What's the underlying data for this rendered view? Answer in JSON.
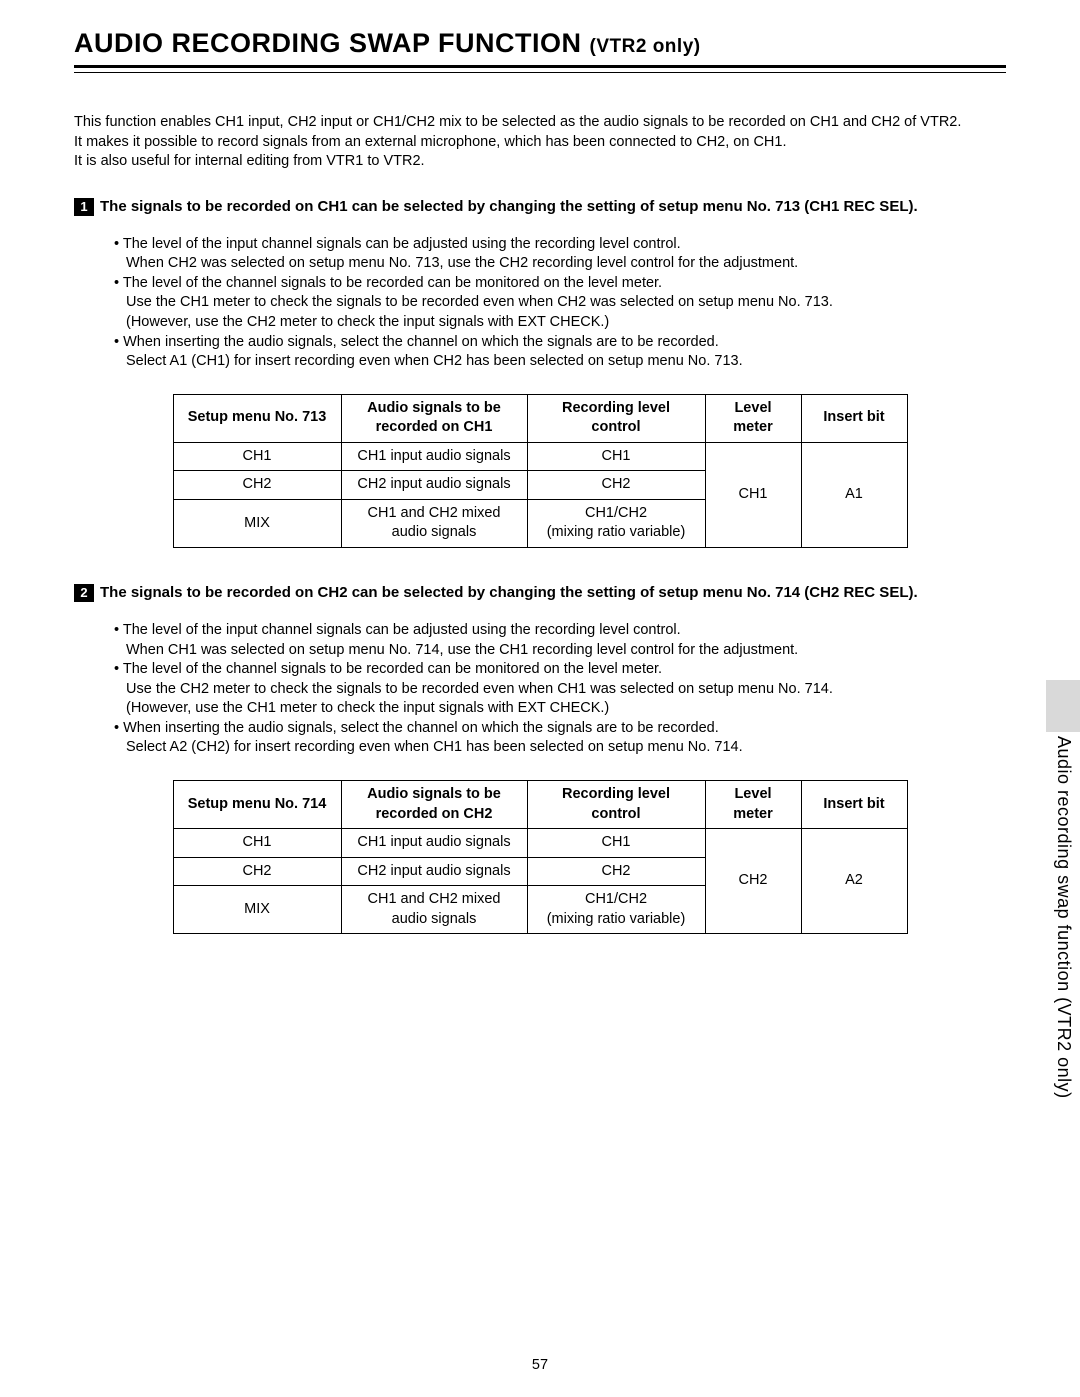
{
  "title": {
    "main": "AUDIO RECORDING SWAP FUNCTION",
    "sub": "(VTR2 only)"
  },
  "intro": {
    "p1": "This function enables CH1 input, CH2 input or CH1/CH2 mix to be selected as the audio signals to be recorded on CH1 and CH2 of VTR2.",
    "p2": "It makes it possible to record signals from an external microphone, which has been connected to CH2, on CH1.",
    "p3": "It is also useful for internal editing from VTR1 to VTR2."
  },
  "section1": {
    "num": "1",
    "heading": "The signals to be recorded on CH1 can be selected by changing the setting of setup menu No. 713 (CH1 REC SEL).",
    "b1": "• The level of the input channel signals can be adjusted using the recording level control.",
    "b1s": "When CH2 was selected on setup menu No. 713, use the CH2 recording level control for the adjustment.",
    "b2": "• The level of the channel signals to be recorded can be monitored on the level meter.",
    "b2s1": "Use the CH1 meter to check the signals to be recorded even when CH2 was selected on setup menu No. 713.",
    "b2s2": "(However, use the CH2 meter to check the input signals with EXT CHECK.)",
    "b3": "• When inserting the audio signals, select the channel on which the signals are to be recorded.",
    "b3s": "Select A1 (CH1) for insert recording even when CH2 has been selected on setup menu No. 713."
  },
  "section2": {
    "num": "2",
    "heading": "The signals to be recorded on CH2 can be selected by changing the setting of setup menu No. 714 (CH2 REC SEL).",
    "b1": "• The level of the input channel signals can be adjusted using the recording level control.",
    "b1s": "When CH1 was selected on setup menu No. 714, use the CH1 recording level control for the adjustment.",
    "b2": "• The level of the channel signals to be recorded can be monitored on the level meter.",
    "b2s1": "Use the CH2 meter to check the signals to be recorded even when CH1 was selected on setup menu No. 714.",
    "b2s2": "(However, use the CH1 meter to check the input signals with EXT CHECK.)",
    "b3": "• When inserting the audio signals, select the channel on which the signals are to be recorded.",
    "b3s": "Select A2 (CH2) for insert recording even when CH1 has been selected on setup menu No. 714."
  },
  "table1": {
    "h1": "Setup menu No. 713",
    "h2a": "Audio signals to be",
    "h2b": "recorded on CH1",
    "h3": "Recording level control",
    "h4": "Level meter",
    "h5": "Insert bit",
    "r1c1": "CH1",
    "r1c2": "CH1 input audio signals",
    "r1c3": "CH1",
    "r2c1": "CH2",
    "r2c2": "CH2 input audio signals",
    "r2c3": "CH2",
    "r3c1": "MIX",
    "r3c2a": "CH1 and CH2 mixed",
    "r3c2b": "audio signals",
    "r3c3a": "CH1/CH2",
    "r3c3b": "(mixing ratio variable)",
    "lm": "CH1",
    "ib": "A1"
  },
  "table2": {
    "h1": "Setup menu No. 714",
    "h2a": "Audio signals to be",
    "h2b": "recorded on CH2",
    "h3": "Recording level control",
    "h4": "Level meter",
    "h5": "Insert bit",
    "r1c1": "CH1",
    "r1c2": "CH1 input audio signals",
    "r1c3": "CH1",
    "r2c1": "CH2",
    "r2c2": "CH2 input audio signals",
    "r2c3": "CH2",
    "r3c1": "MIX",
    "r3c2a": "CH1 and CH2 mixed",
    "r3c2b": "audio signals",
    "r3c3a": "CH1/CH2",
    "r3c3b": "(mixing ratio variable)",
    "lm": "CH2",
    "ib": "A2"
  },
  "sidetext": "Audio recording swap function (VTR2 only)",
  "pagenum": "57"
}
